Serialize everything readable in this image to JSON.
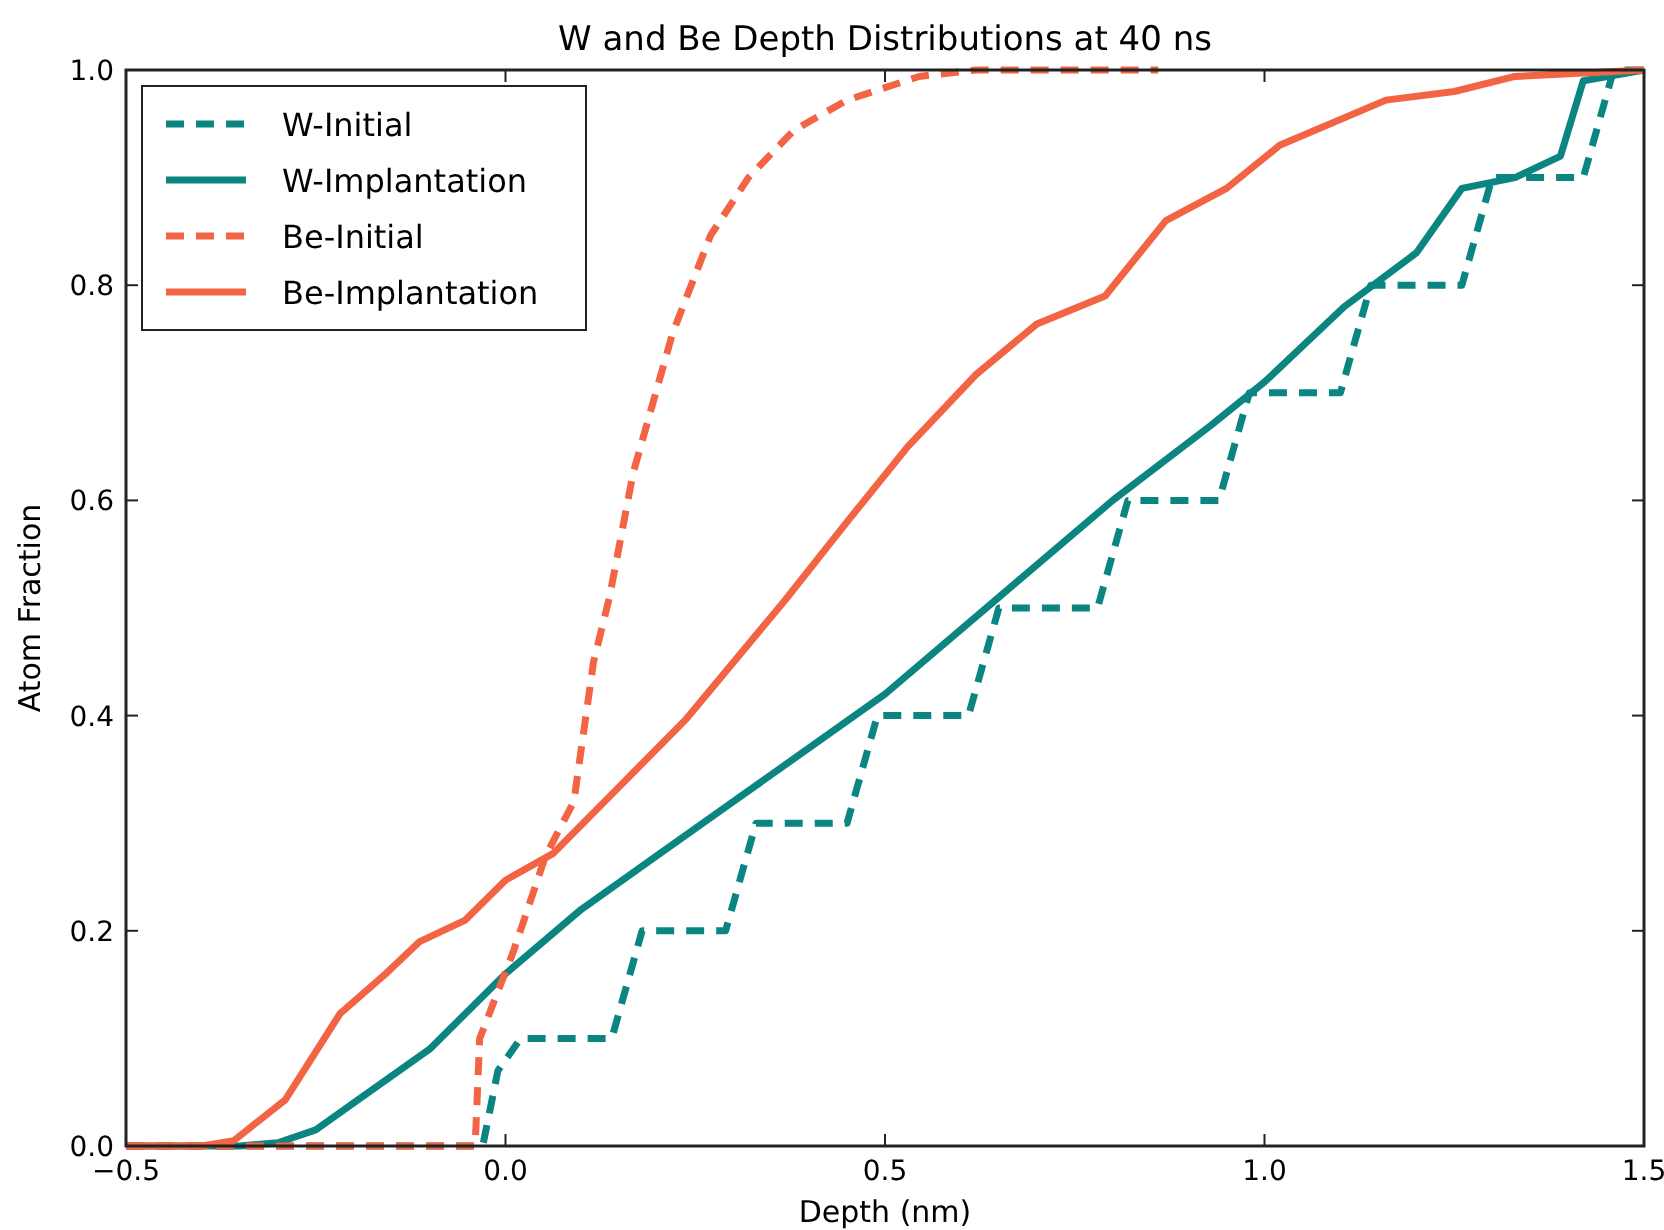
{
  "chart_data": {
    "type": "line",
    "title": "W and Be Depth Distributions at 40 ns",
    "xlabel": "Depth (nm)",
    "ylabel": "Atom Fraction",
    "xlim": [
      -0.5,
      1.5
    ],
    "ylim": [
      0,
      1
    ],
    "xticks": [
      {
        "value": -0.5,
        "label": "−0.5"
      },
      {
        "value": 0,
        "label": "0.0"
      },
      {
        "value": 0.5,
        "label": "0.5"
      },
      {
        "value": 1,
        "label": "1.0"
      },
      {
        "value": 1.5,
        "label": "1.5"
      }
    ],
    "yticks": [
      {
        "value": 0,
        "label": "0.0"
      },
      {
        "value": 0.2,
        "label": "0.2"
      },
      {
        "value": 0.4,
        "label": "0.4"
      },
      {
        "value": 0.6,
        "label": "0.6"
      },
      {
        "value": 0.8,
        "label": "0.8"
      },
      {
        "value": 1,
        "label": "1.0"
      }
    ],
    "grid": false,
    "legend": "top left",
    "marker": "none",
    "series": [
      {
        "name": "W-Initial",
        "color": "#0b8582",
        "line_style": "dashed",
        "x": [
          -0.5,
          -0.03,
          -0.01,
          0.02,
          0.14,
          0.16,
          0.18,
          0.29,
          0.31,
          0.33,
          0.45,
          0.47,
          0.49,
          0.61,
          0.63,
          0.65,
          0.78,
          0.8,
          0.82,
          0.94,
          0.96,
          0.98,
          1.1,
          1.12,
          1.14,
          1.26,
          1.28,
          1.3,
          1.42,
          1.44,
          1.46,
          1.5
        ],
        "values": [
          0,
          0,
          0.07,
          0.1,
          0.1,
          0.15,
          0.2,
          0.2,
          0.25,
          0.3,
          0.3,
          0.35,
          0.4,
          0.4,
          0.45,
          0.5,
          0.5,
          0.55,
          0.6,
          0.6,
          0.65,
          0.7,
          0.7,
          0.75,
          0.8,
          0.8,
          0.85,
          0.9,
          0.9,
          0.95,
          1,
          1
        ]
      },
      {
        "name": "W-Implantation",
        "color": "#0b8582",
        "line_style": "solid",
        "x": [
          -0.5,
          -0.35,
          -0.3,
          -0.25,
          -0.2,
          -0.1,
          0,
          0.1,
          0.2,
          0.3,
          0.4,
          0.5,
          0.65,
          0.8,
          0.93,
          1.0,
          1.105,
          1.2,
          1.26,
          1.33,
          1.39,
          1.42,
          1.5
        ],
        "values": [
          0,
          0,
          0.003,
          0.015,
          0.04,
          0.09,
          0.16,
          0.22,
          0.27,
          0.32,
          0.37,
          0.42,
          0.51,
          0.6,
          0.67,
          0.71,
          0.78,
          0.83,
          0.89,
          0.9,
          0.92,
          0.99,
          1
        ]
      },
      {
        "name": "Be-Initial",
        "color": "#f26444",
        "line_style": "dashed",
        "x": [
          -0.5,
          -0.04,
          -0.034,
          0.01,
          0.053,
          0.09,
          0.116,
          0.137,
          0.168,
          0.22,
          0.27,
          0.32,
          0.38,
          0.45,
          0.545,
          0.62,
          0.86
        ],
        "values": [
          0,
          0,
          0.1,
          0.18,
          0.27,
          0.32,
          0.45,
          0.51,
          0.625,
          0.755,
          0.846,
          0.9,
          0.944,
          0.972,
          0.994,
          1,
          1
        ]
      },
      {
        "name": "Be-Implantation",
        "color": "#f26444",
        "line_style": "solid",
        "x": [
          -0.5,
          -0.4,
          -0.358,
          -0.29,
          -0.218,
          -0.158,
          -0.113,
          -0.053,
          0,
          0.063,
          0.15,
          0.237,
          0.368,
          0.45,
          0.53,
          0.62,
          0.7,
          0.79,
          0.87,
          0.95,
          1.02,
          1.16,
          1.25,
          1.33,
          1.5
        ],
        "values": [
          0,
          0,
          0.005,
          0.043,
          0.123,
          0.16,
          0.19,
          0.21,
          0.247,
          0.272,
          0.334,
          0.396,
          0.507,
          0.58,
          0.65,
          0.717,
          0.764,
          0.79,
          0.86,
          0.89,
          0.93,
          0.972,
          0.98,
          0.994,
          1
        ]
      }
    ]
  }
}
